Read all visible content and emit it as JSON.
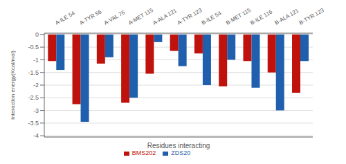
{
  "chart_data": {
    "type": "bar",
    "categories": [
      "A-ILE 54",
      "A-TYR 56",
      "A-VAL 76",
      "A-MET 115",
      "A-ALA 121",
      "A-TYR 123",
      "B-ILE 54",
      "B-MET 115",
      "B-ILE 116",
      "B-ALA 121",
      "B-TYR 123"
    ],
    "series": [
      {
        "name": "BMS202",
        "color": "#c0120c",
        "values": [
          -1.05,
          -2.75,
          -1.15,
          -2.7,
          -1.55,
          -0.65,
          -0.75,
          -2.05,
          -1.05,
          -1.5,
          -2.3
        ]
      },
      {
        "name": "ZDS20",
        "color": "#1f5fad",
        "values": [
          -1.4,
          -3.45,
          -0.9,
          -2.5,
          -0.3,
          -1.25,
          -2.0,
          -1.0,
          -2.1,
          -3.0,
          -1.05
        ]
      }
    ],
    "xlabel": "Residues interacting",
    "ylabel": "Interaction energy(Kcal/mol)",
    "ylim": [
      -4.05,
      0.05
    ],
    "yticks": [
      0,
      -0.5,
      -1,
      -1.5,
      -2,
      -2.5,
      -3,
      -3.5,
      -4
    ],
    "grid": true,
    "legend": "bottom"
  }
}
